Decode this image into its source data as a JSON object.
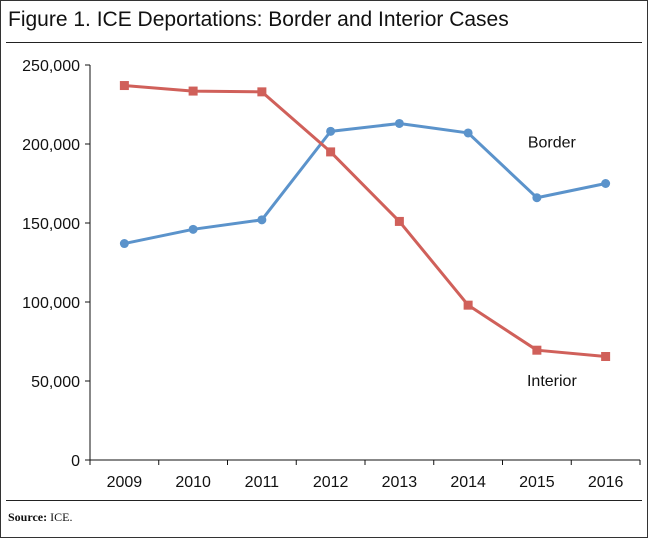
{
  "figure": {
    "title": "Figure 1. ICE Deportations: Border and Interior Cases",
    "source_label": "Source:",
    "source_text": " ICE."
  },
  "chart_data": {
    "type": "line",
    "title": "Figure 1. ICE Deportations: Border and Interior Cases",
    "xlabel": "",
    "ylabel": "",
    "categories": [
      "2009",
      "2010",
      "2011",
      "2012",
      "2013",
      "2014",
      "2015",
      "2016"
    ],
    "ylim": [
      0,
      250000
    ],
    "yticks": [
      0,
      50000,
      100000,
      150000,
      200000,
      250000
    ],
    "ytick_labels": [
      "0",
      "50,000",
      "100,000",
      "150,000",
      "200,000",
      "250,000"
    ],
    "grid": false,
    "legend": "inline labels",
    "series": [
      {
        "name": "Border",
        "color": "#5b93cb",
        "marker": "circle",
        "values": [
          137000,
          146000,
          152000,
          208000,
          213000,
          207000,
          166000,
          175000
        ]
      },
      {
        "name": "Interior",
        "color": "#d0605a",
        "marker": "square",
        "values": [
          237000,
          233500,
          233000,
          195000,
          151000,
          98000,
          69500,
          65500
        ]
      }
    ]
  }
}
